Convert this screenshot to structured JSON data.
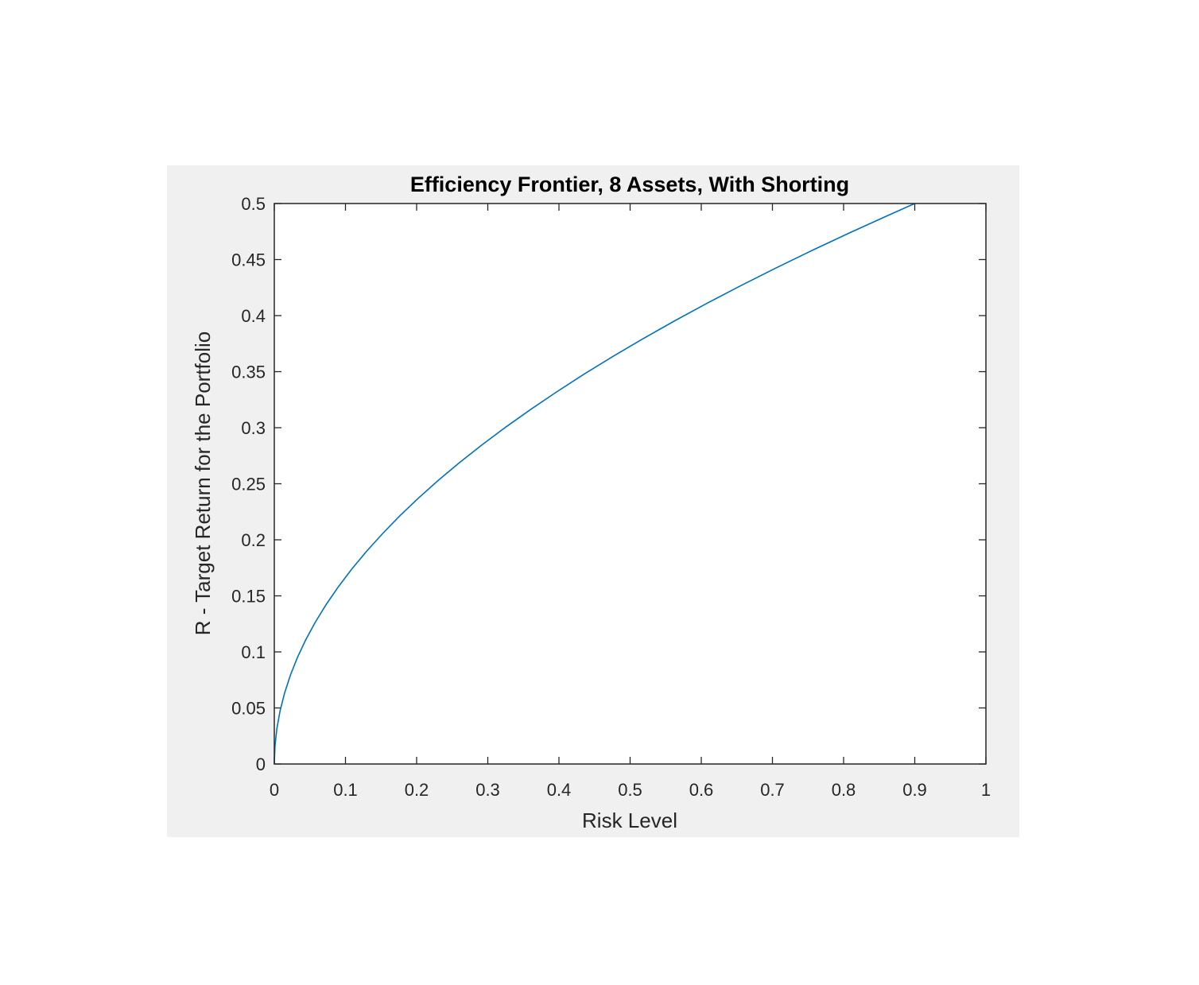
{
  "chart_data": {
    "type": "line",
    "title": "Efficiency Frontier, 8 Assets, With Shorting",
    "xlabel": "Risk Level",
    "ylabel": "R - Target Return for the Portfolio",
    "xlim": [
      0,
      1
    ],
    "ylim": [
      0,
      0.5
    ],
    "xticks": [
      "0",
      "0.1",
      "0.2",
      "0.3",
      "0.4",
      "0.5",
      "0.6",
      "0.7",
      "0.8",
      "0.9",
      "1"
    ],
    "yticks": [
      "0",
      "0.05",
      "0.1",
      "0.15",
      "0.2",
      "0.25",
      "0.3",
      "0.35",
      "0.4",
      "0.45",
      "0.5"
    ],
    "grid": false,
    "colors": {
      "figure_background": "#f0f0f0",
      "axes_background": "#ffffff",
      "axis_color": "#262626",
      "line_color": "#0072bd"
    },
    "series": [
      {
        "x": [
          0,
          0.0009,
          0.0036,
          0.0081,
          0.0144,
          0.0225,
          0.0324,
          0.0441,
          0.0576,
          0.0729,
          0.09,
          0.1089,
          0.1296,
          0.1521,
          0.1764,
          0.2025,
          0.2304,
          0.2601,
          0.2916,
          0.3249,
          0.36,
          0.3969,
          0.4356,
          0.4761,
          0.5184,
          0.5625,
          0.6084,
          0.6561,
          0.7056,
          0.7569,
          0.81,
          0.8649,
          0.9
        ],
        "y": [
          0,
          0.0158,
          0.0316,
          0.0474,
          0.0632,
          0.0791,
          0.0949,
          0.1107,
          0.1265,
          0.1423,
          0.1581,
          0.1739,
          0.1897,
          0.2055,
          0.2214,
          0.2372,
          0.253,
          0.2688,
          0.2846,
          0.3004,
          0.3162,
          0.332,
          0.3479,
          0.3637,
          0.3795,
          0.3953,
          0.4111,
          0.4269,
          0.4427,
          0.4585,
          0.4743,
          0.4901,
          0.5
        ]
      }
    ]
  }
}
